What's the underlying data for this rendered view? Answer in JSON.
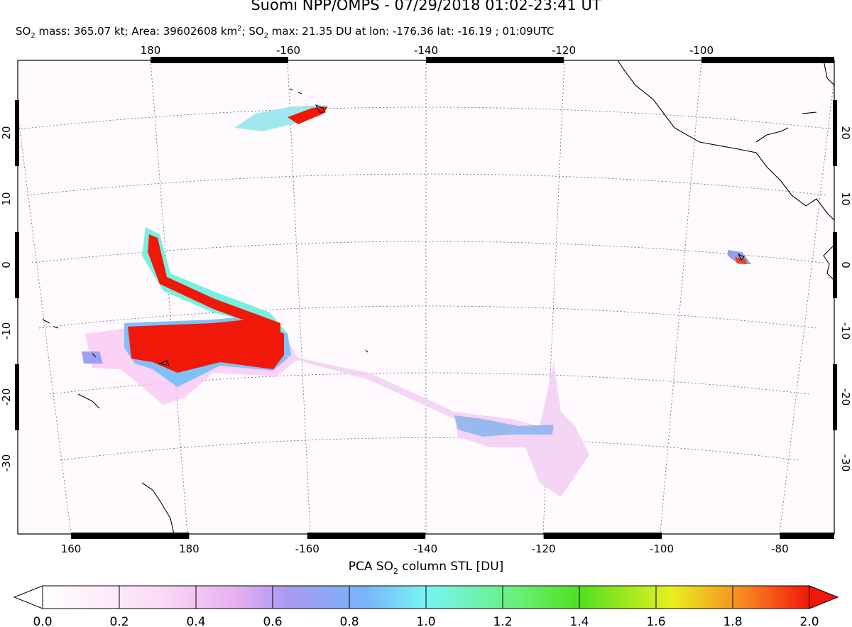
{
  "header": {
    "title": "Suomi NPP/OMPS - 07/29/2018 01:02-23:41 UT",
    "subtitle": [
      "SO",
      "2",
      " mass: 365.07 kt; Area: 39602608 km",
      "2",
      "; SO",
      "2",
      " max: 21.35 DU at lon: -176.36 lat: -16.19 ; 01:09UTC"
    ]
  },
  "map": {
    "top_lon_labels": [
      180,
      -160,
      -140,
      -120,
      -100
    ],
    "bottom_lon_labels": [
      160,
      180,
      -160,
      -140,
      -120,
      -100,
      -80
    ],
    "lat_labels": [
      20,
      10,
      0,
      -10,
      -20,
      -30
    ]
  },
  "colorbar": {
    "label": [
      "PCA SO",
      "2",
      " column STL [DU]"
    ],
    "range": [
      0,
      2
    ],
    "ticks": [
      {
        "value": 0,
        "label": "0.0"
      },
      {
        "value": 0.2,
        "label": "0.2"
      },
      {
        "value": 0.4,
        "label": "0.4"
      },
      {
        "value": 0.6,
        "label": "0.6"
      },
      {
        "value": 0.8,
        "label": "0.8"
      },
      {
        "value": 1,
        "label": "1.0"
      },
      {
        "value": 1.2,
        "label": "1.2"
      },
      {
        "value": 1.4,
        "label": "1.4"
      },
      {
        "value": 1.6,
        "label": "1.6"
      },
      {
        "value": 1.8,
        "label": "1.8"
      },
      {
        "value": 2,
        "label": "2.0"
      }
    ]
  }
}
